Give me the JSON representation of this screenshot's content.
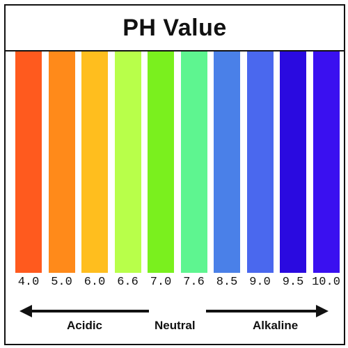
{
  "title": "PH Value",
  "scale": [
    {
      "ph": "4.0",
      "color": "#ff5a1e"
    },
    {
      "ph": "5.0",
      "color": "#ff8a1a"
    },
    {
      "ph": "6.0",
      "color": "#ffbe1e"
    },
    {
      "ph": "6.6",
      "color": "#b8ff4a"
    },
    {
      "ph": "7.0",
      "color": "#7af01e"
    },
    {
      "ph": "7.6",
      "color": "#5ef590"
    },
    {
      "ph": "8.5",
      "color": "#4a80e8"
    },
    {
      "ph": "9.0",
      "color": "#4a68ee"
    },
    {
      "ph": "9.5",
      "color": "#2a0ae0"
    },
    {
      "ph": "10.0",
      "color": "#3a10f0"
    }
  ],
  "labels": {
    "acidic": "Acidic",
    "neutral": "Neutral",
    "alkaline": "Alkaline"
  }
}
